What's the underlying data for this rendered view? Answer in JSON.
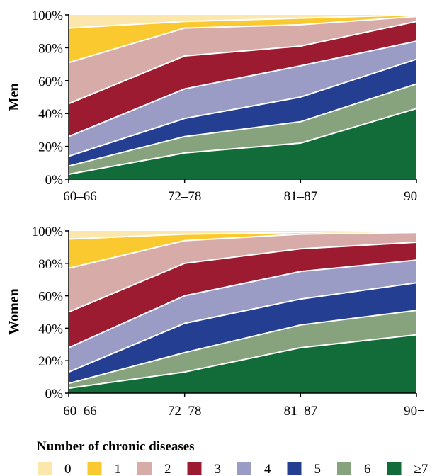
{
  "chart_data": [
    {
      "type": "area",
      "stacking": "percent",
      "panel_label": "Men",
      "categories": [
        "60–66",
        "72–78",
        "81–87",
        "90+"
      ],
      "y_tick_labels": [
        "0%",
        "20%",
        "40%",
        "60%",
        "80%",
        "100%"
      ],
      "ylim": [
        0,
        100
      ],
      "series": [
        {
          "name": "≥7",
          "values": [
            3,
            16,
            22,
            43
          ]
        },
        {
          "name": "6",
          "values": [
            5,
            10,
            13,
            15
          ]
        },
        {
          "name": "5",
          "values": [
            6,
            11,
            15,
            15
          ]
        },
        {
          "name": "4",
          "values": [
            12,
            18,
            19,
            11
          ]
        },
        {
          "name": "3",
          "values": [
            20,
            20,
            12,
            12
          ]
        },
        {
          "name": "2",
          "values": [
            25,
            17,
            13,
            3
          ]
        },
        {
          "name": "1",
          "values": [
            21,
            4,
            4,
            1
          ]
        },
        {
          "name": "0",
          "values": [
            8,
            4,
            2,
            0
          ]
        }
      ]
    },
    {
      "type": "area",
      "stacking": "percent",
      "panel_label": "Women",
      "categories": [
        "60–66",
        "72–78",
        "81–87",
        "90+"
      ],
      "y_tick_labels": [
        "0%",
        "20%",
        "40%",
        "60%",
        "80%",
        "100%"
      ],
      "ylim": [
        0,
        100
      ],
      "series": [
        {
          "name": "≥7",
          "values": [
            3,
            13,
            28,
            36
          ]
        },
        {
          "name": "6",
          "values": [
            3,
            12,
            14,
            15
          ]
        },
        {
          "name": "5",
          "values": [
            7,
            18,
            16,
            17
          ]
        },
        {
          "name": "4",
          "values": [
            15,
            17,
            17,
            14
          ]
        },
        {
          "name": "3",
          "values": [
            22,
            20,
            14,
            11
          ]
        },
        {
          "name": "2",
          "values": [
            27,
            14,
            9,
            6
          ]
        },
        {
          "name": "1",
          "values": [
            18,
            4,
            1,
            1
          ]
        },
        {
          "name": "0",
          "values": [
            5,
            2,
            1,
            0
          ]
        }
      ]
    }
  ],
  "legend": {
    "title": "Number of chronic diseases",
    "items": [
      {
        "label": "0",
        "color": "#fbe6ac"
      },
      {
        "label": "1",
        "color": "#f9c92f"
      },
      {
        "label": "2",
        "color": "#d7aca8"
      },
      {
        "label": "3",
        "color": "#9c1b31"
      },
      {
        "label": "4",
        "color": "#9a9cc6"
      },
      {
        "label": "5",
        "color": "#243f91"
      },
      {
        "label": "6",
        "color": "#86a37e"
      },
      {
        "label": "≥7",
        "color": "#126c3a"
      }
    ]
  }
}
